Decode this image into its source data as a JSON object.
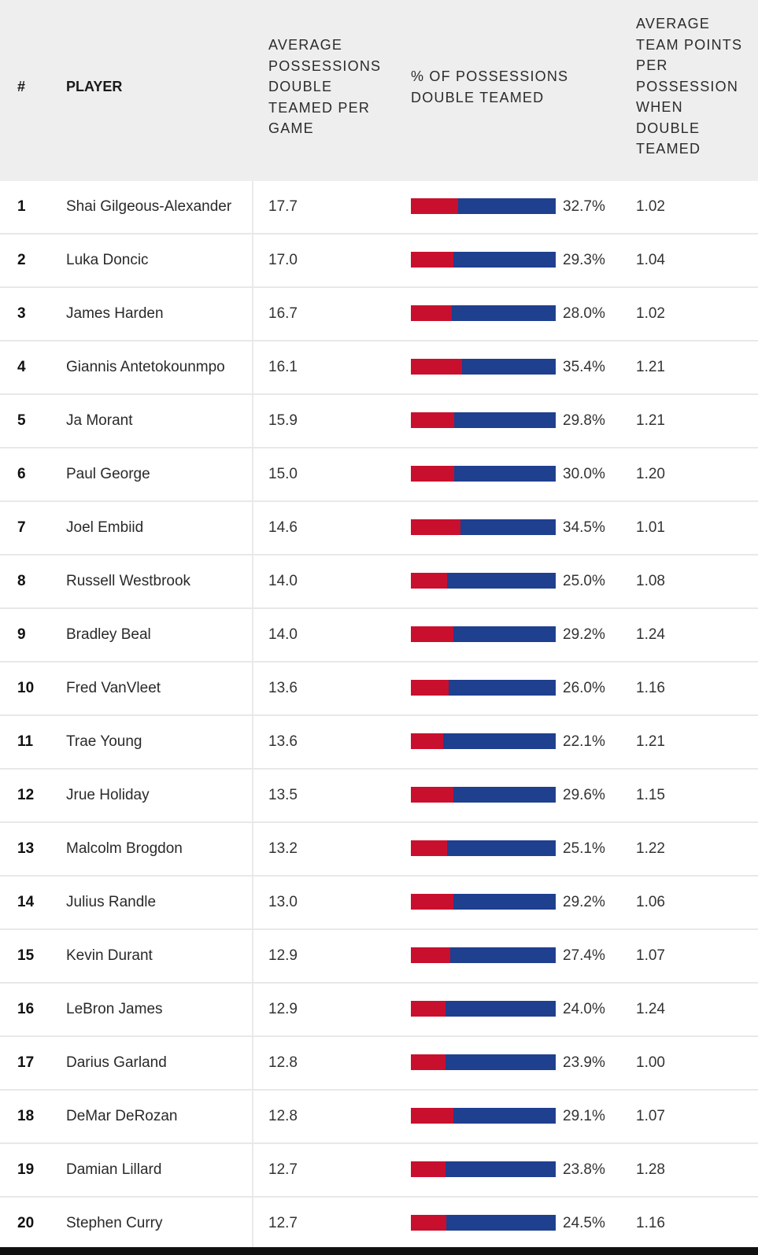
{
  "header": {
    "rank": "#",
    "player": "PLAYER",
    "avg_possessions": "AVERAGE\nPOSSESSIONS\nDOUBLE\nTEAMED PER\nGAME",
    "pct_possessions": "% OF POSSESSIONS\nDOUBLE TEAMED",
    "team_points": "AVERAGE\nTEAM POINTS\nPER\nPOSSESSION\nWHEN\nDOUBLE\nTEAMED"
  },
  "colors": {
    "bar_fill": "#c8102e",
    "bar_track": "#1f3f8f",
    "header_bg": "#eeeeee"
  },
  "chart_data": {
    "type": "table",
    "columns": [
      "#",
      "PLAYER",
      "AVERAGE POSSESSIONS DOUBLE TEAMED PER GAME",
      "% OF POSSESSIONS DOUBLE TEAMED",
      "AVERAGE TEAM POINTS PER POSSESSION WHEN DOUBLE TEAMED"
    ],
    "rows": [
      {
        "rank": "1",
        "player": "Shai Gilgeous-Alexander",
        "avg": "17.7",
        "pct": "32.7%",
        "pct_value": 32.7,
        "pts": "1.02"
      },
      {
        "rank": "2",
        "player": "Luka Doncic",
        "avg": "17.0",
        "pct": "29.3%",
        "pct_value": 29.3,
        "pts": "1.04"
      },
      {
        "rank": "3",
        "player": "James Harden",
        "avg": "16.7",
        "pct": "28.0%",
        "pct_value": 28.0,
        "pts": "1.02"
      },
      {
        "rank": "4",
        "player": "Giannis Antetokounmpo",
        "avg": "16.1",
        "pct": "35.4%",
        "pct_value": 35.4,
        "pts": "1.21"
      },
      {
        "rank": "5",
        "player": "Ja Morant",
        "avg": "15.9",
        "pct": "29.8%",
        "pct_value": 29.8,
        "pts": "1.21"
      },
      {
        "rank": "6",
        "player": "Paul George",
        "avg": "15.0",
        "pct": "30.0%",
        "pct_value": 30.0,
        "pts": "1.20"
      },
      {
        "rank": "7",
        "player": "Joel Embiid",
        "avg": "14.6",
        "pct": "34.5%",
        "pct_value": 34.5,
        "pts": "1.01"
      },
      {
        "rank": "8",
        "player": "Russell Westbrook",
        "avg": "14.0",
        "pct": "25.0%",
        "pct_value": 25.0,
        "pts": "1.08"
      },
      {
        "rank": "9",
        "player": "Bradley Beal",
        "avg": "14.0",
        "pct": "29.2%",
        "pct_value": 29.2,
        "pts": "1.24"
      },
      {
        "rank": "10",
        "player": "Fred VanVleet",
        "avg": "13.6",
        "pct": "26.0%",
        "pct_value": 26.0,
        "pts": "1.16"
      },
      {
        "rank": "11",
        "player": "Trae Young",
        "avg": "13.6",
        "pct": "22.1%",
        "pct_value": 22.1,
        "pts": "1.21"
      },
      {
        "rank": "12",
        "player": "Jrue Holiday",
        "avg": "13.5",
        "pct": "29.6%",
        "pct_value": 29.6,
        "pts": "1.15"
      },
      {
        "rank": "13",
        "player": "Malcolm Brogdon",
        "avg": "13.2",
        "pct": "25.1%",
        "pct_value": 25.1,
        "pts": "1.22"
      },
      {
        "rank": "14",
        "player": "Julius Randle",
        "avg": "13.0",
        "pct": "29.2%",
        "pct_value": 29.2,
        "pts": "1.06"
      },
      {
        "rank": "15",
        "player": "Kevin Durant",
        "avg": "12.9",
        "pct": "27.4%",
        "pct_value": 27.4,
        "pts": "1.07"
      },
      {
        "rank": "16",
        "player": "LeBron James",
        "avg": "12.9",
        "pct": "24.0%",
        "pct_value": 24.0,
        "pts": "1.24"
      },
      {
        "rank": "17",
        "player": "Darius Garland",
        "avg": "12.8",
        "pct": "23.9%",
        "pct_value": 23.9,
        "pts": "1.00"
      },
      {
        "rank": "18",
        "player": "DeMar DeRozan",
        "avg": "12.8",
        "pct": "29.1%",
        "pct_value": 29.1,
        "pts": "1.07"
      },
      {
        "rank": "19",
        "player": "Damian Lillard",
        "avg": "12.7",
        "pct": "23.8%",
        "pct_value": 23.8,
        "pts": "1.28"
      },
      {
        "rank": "20",
        "player": "Stephen Curry",
        "avg": "12.7",
        "pct": "24.5%",
        "pct_value": 24.5,
        "pts": "1.16"
      }
    ]
  }
}
